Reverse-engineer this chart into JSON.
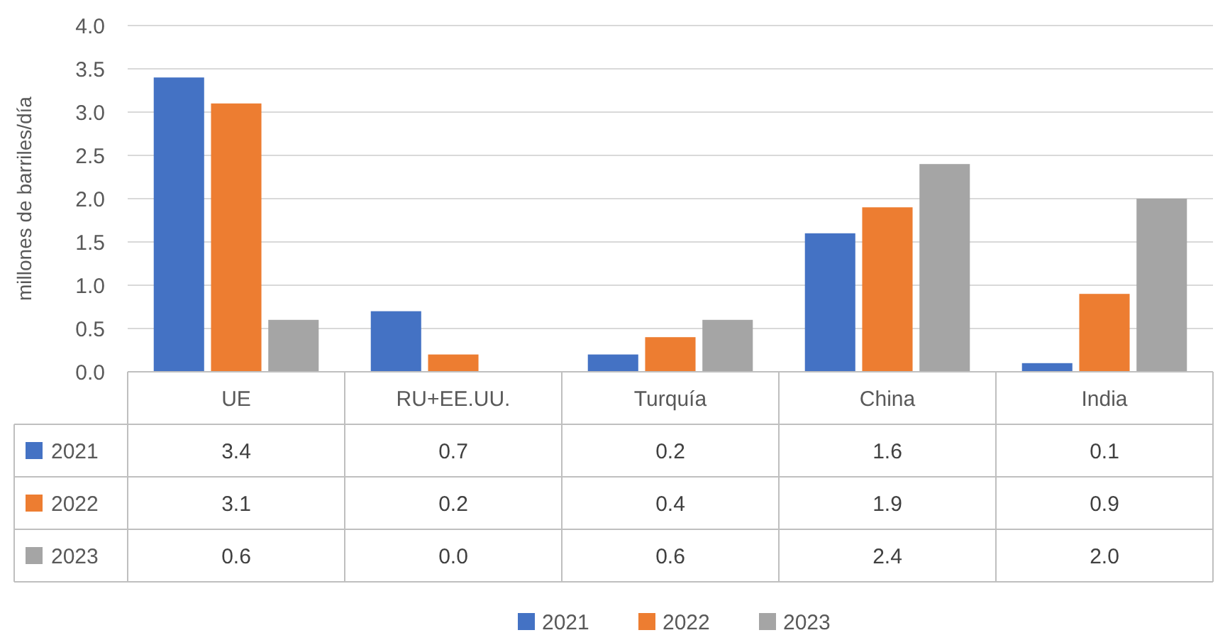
{
  "chart_data": {
    "type": "bar",
    "ylabel": "millones de barriles/día",
    "categories": [
      "UE",
      "RU+EE.UU.",
      "Turquía",
      "China",
      "India"
    ],
    "series": [
      {
        "name": "2021",
        "color": "#4472c4",
        "values": [
          3.4,
          0.7,
          0.2,
          1.6,
          0.1
        ],
        "value_labels": [
          "3.4",
          "0.7",
          "0.2",
          "1.6",
          "0.1"
        ]
      },
      {
        "name": "2022",
        "color": "#ed7d31",
        "values": [
          3.1,
          0.2,
          0.4,
          1.9,
          0.9
        ],
        "value_labels": [
          "3.1",
          "0.2",
          "0.4",
          "1.9",
          "0.9"
        ]
      },
      {
        "name": "2023",
        "color": "#a5a5a5",
        "values": [
          0.6,
          0.0,
          0.6,
          2.4,
          2.0
        ],
        "value_labels": [
          "0.6",
          "0.0",
          "0.6",
          "2.4",
          "2.0"
        ]
      }
    ],
    "ylim": [
      0,
      4
    ],
    "yticks": [
      {
        "value": 0,
        "label": "0.0"
      },
      {
        "value": 0.5,
        "label": "0.5"
      },
      {
        "value": 1,
        "label": "1.0"
      },
      {
        "value": 1.5,
        "label": "1.5"
      },
      {
        "value": 2,
        "label": "2.0"
      },
      {
        "value": 2.5,
        "label": "2.5"
      },
      {
        "value": 3,
        "label": "3.0"
      },
      {
        "value": 3.5,
        "label": "3.5"
      },
      {
        "value": 4,
        "label": "4.0"
      }
    ],
    "grid": "y",
    "legend": "bottom"
  }
}
